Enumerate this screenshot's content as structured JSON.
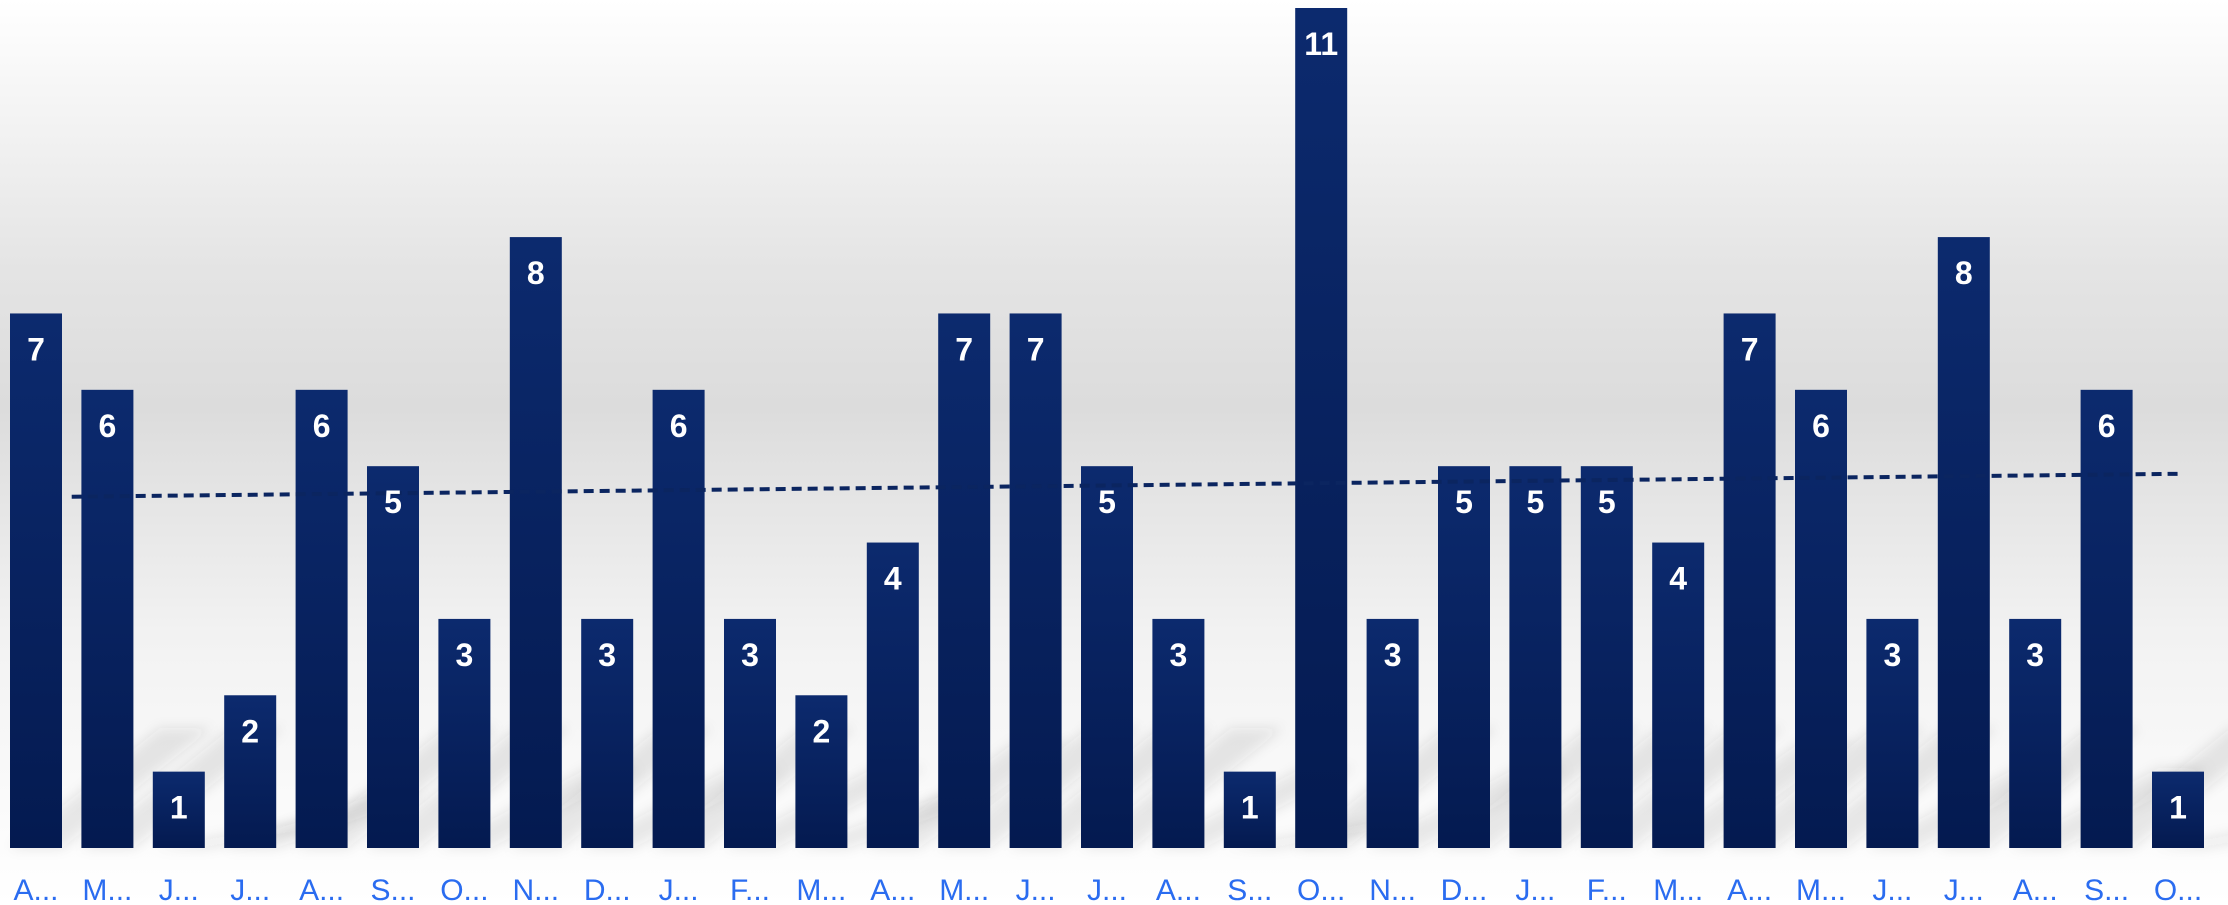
{
  "chart_data": {
    "type": "bar",
    "categories": [
      "A...",
      "M...",
      "J...",
      "J...",
      "A...",
      "S...",
      "O...",
      "N...",
      "D...",
      "J...",
      "F...",
      "M...",
      "A...",
      "M...",
      "J...",
      "J...",
      "A...",
      "S...",
      "O...",
      "N...",
      "D...",
      "J...",
      "F...",
      "M...",
      "A...",
      "M...",
      "J...",
      "J...",
      "A...",
      "S...",
      "O..."
    ],
    "values": [
      7,
      6,
      1,
      2,
      6,
      5,
      3,
      8,
      3,
      6,
      3,
      2,
      4,
      7,
      7,
      5,
      3,
      1,
      11,
      3,
      5,
      5,
      5,
      4,
      7,
      6,
      3,
      8,
      3,
      6,
      1
    ],
    "ylim": [
      0,
      11
    ],
    "trendline": {
      "style": "dashed",
      "start_value": 4.6,
      "end_value": 4.9
    },
    "grid": false,
    "legend": "none",
    "colors": {
      "bar": "#052062",
      "bar_top": "#0a2a70",
      "value_label": "#ffffff",
      "category_label": "#2a6cf0",
      "trendline": "#0b2560"
    }
  }
}
